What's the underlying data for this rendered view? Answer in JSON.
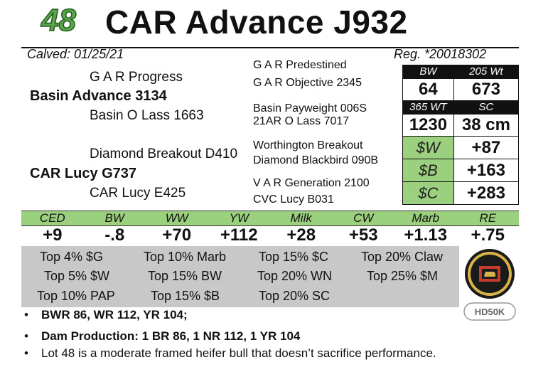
{
  "header": {
    "lot": "48",
    "title": "CAR Advance J932"
  },
  "info": {
    "calved": "Calved:  01/25/21",
    "reg": "Reg. *20018302"
  },
  "pedigree": {
    "sire_sire": "G A R Progress",
    "sire": "Basin Advance 3134",
    "sire_dam": "Basin O Lass 1663",
    "dam_sire": "Diamond Breakout D410",
    "dam": "CAR Lucy G737",
    "dam_dam": "CAR Lucy E425",
    "right": [
      "G A R Predestined",
      "G A R Objective 2345",
      "Basin Payweight 006S",
      "21AR O Lass 7017",
      "Worthington Breakout",
      "Diamond Blackbird 090B",
      "V A R Generation 2100",
      "CVC Lucy B031"
    ]
  },
  "traits": {
    "bw_label": "BW",
    "wt205_label": "205 Wt",
    "bw": "64",
    "wt205": "673",
    "wt365_label": "365 WT",
    "sc_label": "SC",
    "wt365": "1230",
    "sc": "38 cm"
  },
  "indexes": [
    {
      "label": "$W",
      "value": "+87"
    },
    {
      "label": "$B",
      "value": "+163"
    },
    {
      "label": "$C",
      "value": "+283"
    }
  ],
  "epds": {
    "labels": [
      "CED",
      "BW",
      "WW",
      "YW",
      "Milk",
      "CW",
      "Marb",
      "RE"
    ],
    "values": [
      "+9",
      "-.8",
      "+70",
      "+112",
      "+28",
      "+53",
      "+1.13",
      "+.75"
    ]
  },
  "percentiles": [
    [
      "Top 4% $G",
      "Top 10% Marb",
      "Top 15% $C",
      "Top 20% Claw"
    ],
    [
      "Top 5% $W",
      "Top 15% BW",
      "Top 20% WN",
      "Top 25% $M"
    ],
    [
      "Top 10% PAP",
      "Top 15% $B",
      "Top 20% SC"
    ]
  ],
  "logos": {
    "hd50k": "HD50K"
  },
  "notes": [
    "BWR 86, WR 112, YR 104;",
    "Dam Production:  1 BR 86, 1 NR 112, 1 YR 104",
    "Lot 48 is a moderate framed heifer bull that doesn’t sacrifice performance."
  ],
  "colors": {
    "green": "#9bd07e",
    "lot_green": "#5aa64a",
    "gray": "#c8c8c8"
  }
}
